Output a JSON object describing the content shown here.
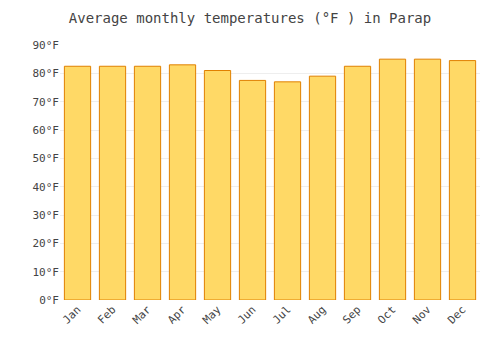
{
  "chart_data": {
    "type": "bar",
    "title": "Average monthly temperatures (°F ) in Parap",
    "categories": [
      "Jan",
      "Feb",
      "Mar",
      "Apr",
      "May",
      "Jun",
      "Jul",
      "Aug",
      "Sep",
      "Oct",
      "Nov",
      "Dec"
    ],
    "values": [
      82.5,
      82.5,
      82.5,
      83.0,
      81.0,
      77.5,
      77.0,
      79.0,
      82.5,
      85.0,
      85.0,
      84.5
    ],
    "color": "#FFD966",
    "ylim": [
      0,
      90
    ],
    "yticks": [
      {
        "value": 0,
        "label": "0°F"
      },
      {
        "value": 10,
        "label": "10°F"
      },
      {
        "value": 20,
        "label": "20°F"
      },
      {
        "value": 30,
        "label": "30°F"
      },
      {
        "value": 40,
        "label": "40°F"
      },
      {
        "value": 50,
        "label": "50°F"
      },
      {
        "value": 60,
        "label": "60°F"
      },
      {
        "value": 70,
        "label": "70°F"
      },
      {
        "value": 80,
        "label": "80°F"
      },
      {
        "value": 90,
        "label": "90°F"
      }
    ],
    "grid": true
  }
}
